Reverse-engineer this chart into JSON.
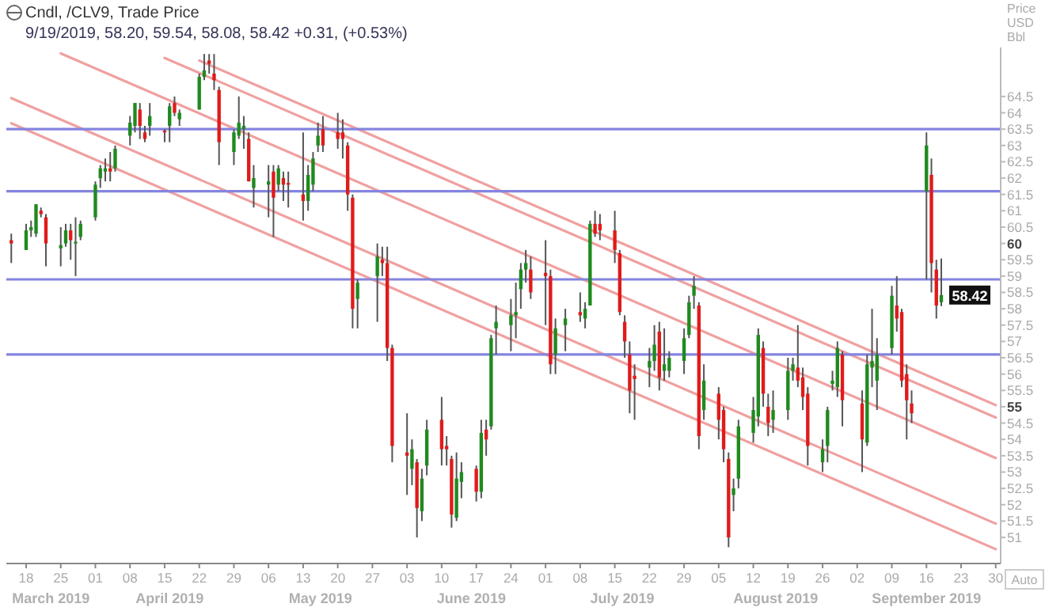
{
  "chart_data": {
    "type": "candlestick",
    "title": "Cndl, /CLV9, Trade Price",
    "subtitle": "9/19/2019, 58.20, 59.54, 58.08, 58.42 +0.31, (+0.53%)",
    "ylabel": "Price USD Bbl",
    "x": [
      "2019-03-15",
      "2019-03-18",
      "2019-03-19",
      "2019-03-20",
      "2019-03-21",
      "2019-03-22",
      "2019-03-25",
      "2019-03-26",
      "2019-03-27",
      "2019-03-28",
      "2019-03-29",
      "2019-04-01",
      "2019-04-02",
      "2019-04-03",
      "2019-04-04",
      "2019-04-05",
      "2019-04-08",
      "2019-04-09",
      "2019-04-10",
      "2019-04-11",
      "2019-04-12",
      "2019-04-15",
      "2019-04-16",
      "2019-04-17",
      "2019-04-18",
      "2019-04-22",
      "2019-04-23",
      "2019-04-24",
      "2019-04-25",
      "2019-04-26",
      "2019-04-29",
      "2019-04-30",
      "2019-05-01",
      "2019-05-02",
      "2019-05-03",
      "2019-05-06",
      "2019-05-07",
      "2019-05-08",
      "2019-05-09",
      "2019-05-10",
      "2019-05-13",
      "2019-05-14",
      "2019-05-15",
      "2019-05-16",
      "2019-05-17",
      "2019-05-20",
      "2019-05-21",
      "2019-05-22",
      "2019-05-23",
      "2019-05-24",
      "2019-05-28",
      "2019-05-29",
      "2019-05-30",
      "2019-05-31",
      "2019-06-03",
      "2019-06-04",
      "2019-06-05",
      "2019-06-06",
      "2019-06-07",
      "2019-06-10",
      "2019-06-11",
      "2019-06-12",
      "2019-06-13",
      "2019-06-14",
      "2019-06-17",
      "2019-06-18",
      "2019-06-19",
      "2019-06-20",
      "2019-06-21",
      "2019-06-24",
      "2019-06-25",
      "2019-06-26",
      "2019-06-27",
      "2019-06-28",
      "2019-07-01",
      "2019-07-02",
      "2019-07-03",
      "2019-07-05",
      "2019-07-08",
      "2019-07-09",
      "2019-07-10",
      "2019-07-11",
      "2019-07-12",
      "2019-07-15",
      "2019-07-16",
      "2019-07-17",
      "2019-07-18",
      "2019-07-19",
      "2019-07-22",
      "2019-07-23",
      "2019-07-24",
      "2019-07-25",
      "2019-07-26",
      "2019-07-29",
      "2019-07-30",
      "2019-07-31",
      "2019-08-01",
      "2019-08-02",
      "2019-08-05",
      "2019-08-06",
      "2019-08-07",
      "2019-08-08",
      "2019-08-09",
      "2019-08-12",
      "2019-08-13",
      "2019-08-14",
      "2019-08-15",
      "2019-08-16",
      "2019-08-19",
      "2019-08-20",
      "2019-08-21",
      "2019-08-22",
      "2019-08-23",
      "2019-08-26",
      "2019-08-27",
      "2019-08-28",
      "2019-08-29",
      "2019-08-30",
      "2019-09-03",
      "2019-09-04",
      "2019-09-05",
      "2019-09-06",
      "2019-09-09",
      "2019-09-10",
      "2019-09-11",
      "2019-09-12",
      "2019-09-13",
      "2019-09-16",
      "2019-09-17",
      "2019-09-18",
      "2019-09-19"
    ],
    "ohlc": [
      [
        60.1,
        60.3,
        59.4,
        60.0
      ],
      [
        59.8,
        60.6,
        59.8,
        60.4
      ],
      [
        60.4,
        60.7,
        60.2,
        60.5
      ],
      [
        60.3,
        61.2,
        60.2,
        61.2
      ],
      [
        61.0,
        61.1,
        60.8,
        60.9
      ],
      [
        60.8,
        60.9,
        59.3,
        60.0
      ],
      [
        59.85,
        60.5,
        59.3,
        59.95
      ],
      [
        60.0,
        60.6,
        59.9,
        60.4
      ],
      [
        60.4,
        60.6,
        59.5,
        60.1
      ],
      [
        60.0,
        60.8,
        59.0,
        60.05
      ],
      [
        60.2,
        60.7,
        60.1,
        60.6
      ],
      [
        60.8,
        61.9,
        60.7,
        61.8
      ],
      [
        62.0,
        62.4,
        61.7,
        62.3
      ],
      [
        62.2,
        62.6,
        61.9,
        62.3
      ],
      [
        62.3,
        62.8,
        61.9,
        62.2
      ],
      [
        62.3,
        63.0,
        62.2,
        62.9
      ],
      [
        63.3,
        63.9,
        63.0,
        63.7
      ],
      [
        63.6,
        64.3,
        63.4,
        64.3
      ],
      [
        64.1,
        64.3,
        63.2,
        63.6
      ],
      [
        63.4,
        63.6,
        63.1,
        63.2
      ],
      [
        63.6,
        64.3,
        63.3,
        63.9
      ],
      [
        63.45,
        63.5,
        63.1,
        63.4
      ],
      [
        63.6,
        64.3,
        63.1,
        64.2
      ],
      [
        64.3,
        64.5,
        63.9,
        64.0
      ],
      [
        63.8,
        64.1,
        63.6,
        64.0
      ],
      [
        64.1,
        65.2,
        64.1,
        65.1
      ],
      [
        65.1,
        65.8,
        65.0,
        65.3
      ],
      [
        65.6,
        65.8,
        65.2,
        65.5
      ],
      [
        65.2,
        65.8,
        64.7,
        65.0
      ],
      [
        64.7,
        64.8,
        62.4,
        63.1
      ],
      [
        62.8,
        63.5,
        62.4,
        63.4
      ],
      [
        63.3,
        64.5,
        63.2,
        63.7
      ],
      [
        63.5,
        63.9,
        62.9,
        63.6
      ],
      [
        63.2,
        63.4,
        61.9,
        61.9
      ],
      [
        61.7,
        62.4,
        61.1,
        62.0
      ],
      [
        61.8,
        62.4,
        60.8,
        61.9
      ],
      [
        62.2,
        62.4,
        60.2,
        61.4
      ],
      [
        61.8,
        62.4,
        61.6,
        62.3
      ],
      [
        62.0,
        62.2,
        61.3,
        61.8
      ],
      [
        61.85,
        62.2,
        61.1,
        61.8
      ],
      [
        61.5,
        63.4,
        60.7,
        61.3
      ],
      [
        61.3,
        62.4,
        61.0,
        62.1
      ],
      [
        61.8,
        62.8,
        61.6,
        62.6
      ],
      [
        63.0,
        63.7,
        62.8,
        63.3
      ],
      [
        63.5,
        63.9,
        62.8,
        63.0
      ],
      [
        63.4,
        64.0,
        62.9,
        63.2
      ],
      [
        63.4,
        63.8,
        62.6,
        63.2
      ],
      [
        63.0,
        63.1,
        61.0,
        61.5
      ],
      [
        61.4,
        61.5,
        57.4,
        58.0
      ],
      [
        58.3,
        58.9,
        57.4,
        58.8
      ],
      [
        59.0,
        60.0,
        57.6,
        59.6
      ],
      [
        59.5,
        59.9,
        59.0,
        59.4
      ],
      [
        59.4,
        59.9,
        56.4,
        56.8
      ],
      [
        56.8,
        56.9,
        53.3,
        53.8
      ],
      [
        53.6,
        54.8,
        52.3,
        53.5
      ],
      [
        53.1,
        54.0,
        52.6,
        53.7
      ],
      [
        53.3,
        53.4,
        51.0,
        51.9
      ],
      [
        51.8,
        53.1,
        51.5,
        52.8
      ],
      [
        53.2,
        54.6,
        52.9,
        54.3
      ],
      [
        54.6,
        55.3,
        53.2,
        53.7
      ],
      [
        53.8,
        54.1,
        53.2,
        53.7
      ],
      [
        53.4,
        53.5,
        51.3,
        51.7
      ],
      [
        51.6,
        53.6,
        51.5,
        52.8
      ],
      [
        52.7,
        53.3,
        52.2,
        53.0
      ],
      [
        53.1,
        53.2,
        52.1,
        52.4
      ],
      [
        52.4,
        54.6,
        52.2,
        54.2
      ],
      [
        54.3,
        54.6,
        53.5,
        54.0
      ],
      [
        54.4,
        57.2,
        54.3,
        57.1
      ],
      [
        57.4,
        58.1,
        56.6,
        57.6
      ],
      [
        57.5,
        58.3,
        56.7,
        57.8
      ],
      [
        57.8,
        58.8,
        57.1,
        57.9
      ],
      [
        58.6,
        59.4,
        58.0,
        59.2
      ],
      [
        59.2,
        59.8,
        58.8,
        59.4
      ],
      [
        59.2,
        59.6,
        58.3,
        58.5
      ],
      [
        59.1,
        60.1,
        57.5,
        59.0
      ],
      [
        59.0,
        59.2,
        56.0,
        56.3
      ],
      [
        56.6,
        57.7,
        56.0,
        57.4
      ],
      [
        57.5,
        58.0,
        56.7,
        57.7
      ],
      [
        57.9,
        58.5,
        57.6,
        57.8
      ],
      [
        57.7,
        58.2,
        57.4,
        58.0
      ],
      [
        58.1,
        60.7,
        58.1,
        60.6
      ],
      [
        60.6,
        61.0,
        60.2,
        60.3
      ],
      [
        60.6,
        60.9,
        60.1,
        60.4
      ],
      [
        60.4,
        61.0,
        59.4,
        59.8
      ],
      [
        59.7,
        59.8,
        57.8,
        57.9
      ],
      [
        57.6,
        57.8,
        56.5,
        57.0
      ],
      [
        56.6,
        57.0,
        54.8,
        55.5
      ],
      [
        55.95,
        56.3,
        54.6,
        55.85
      ],
      [
        56.2,
        56.8,
        55.6,
        56.4
      ],
      [
        56.4,
        57.5,
        56.1,
        56.9
      ],
      [
        57.3,
        57.6,
        55.5,
        55.9
      ],
      [
        56.1,
        57.4,
        55.8,
        56.3
      ],
      [
        56.1,
        56.7,
        55.9,
        56.5
      ],
      [
        56.4,
        57.4,
        56.0,
        57.1
      ],
      [
        57.2,
        58.4,
        57.1,
        58.2
      ],
      [
        58.4,
        59.0,
        58.0,
        58.7
      ],
      [
        58.1,
        58.2,
        53.7,
        54.1
      ],
      [
        54.9,
        56.3,
        54.6,
        55.8
      ],
      [
        55.4,
        55.6,
        54.0,
        54.6
      ],
      [
        54.9,
        55.0,
        53.3,
        53.7
      ],
      [
        53.4,
        53.6,
        50.7,
        51.0
      ],
      [
        52.3,
        52.8,
        51.8,
        52.5
      ],
      [
        52.8,
        54.6,
        52.5,
        54.4
      ],
      [
        54.2,
        55.3,
        53.9,
        54.9
      ],
      [
        54.7,
        57.4,
        54.4,
        57.2
      ],
      [
        56.8,
        57.0,
        55.0,
        55.4
      ],
      [
        55.0,
        55.4,
        54.1,
        54.5
      ],
      [
        54.6,
        55.5,
        54.2,
        54.9
      ],
      [
        54.9,
        56.5,
        54.6,
        56.1
      ],
      [
        56.1,
        56.5,
        55.8,
        56.3
      ],
      [
        56.2,
        57.5,
        55.6,
        55.8
      ],
      [
        55.9,
        56.2,
        54.9,
        55.3
      ],
      [
        55.4,
        55.6,
        53.2,
        53.8
      ],
      [
        53.3,
        54.0,
        53.0,
        53.7
      ],
      [
        53.8,
        55.0,
        53.3,
        54.9
      ],
      [
        55.7,
        56.1,
        55.5,
        55.8
      ],
      [
        55.6,
        57.0,
        55.3,
        56.8
      ],
      [
        56.6,
        56.7,
        54.4,
        55.2
      ],
      [
        55.1,
        55.5,
        53.0,
        54.0
      ],
      [
        53.9,
        56.6,
        53.8,
        56.3
      ],
      [
        56.2,
        58.0,
        55.6,
        56.4
      ],
      [
        55.8,
        57.1,
        54.9,
        56.6
      ],
      [
        56.8,
        58.7,
        56.6,
        58.4
      ],
      [
        58.1,
        59.0,
        57.3,
        57.7
      ],
      [
        57.9,
        58.0,
        55.6,
        55.8
      ],
      [
        56.0,
        56.3,
        54.0,
        55.2
      ],
      [
        55.1,
        55.5,
        54.5,
        54.8
      ],
      [
        61.6,
        63.4,
        58.9,
        63.0
      ],
      [
        62.1,
        62.6,
        58.5,
        59.4
      ],
      [
        59.2,
        59.5,
        57.7,
        58.1
      ],
      [
        58.2,
        59.54,
        58.08,
        58.42
      ]
    ],
    "series": [
      {
        "type": "line",
        "color": "#f0a0a0",
        "x": [
          "2019-03-15",
          "2019-09-30"
        ],
        "values": [
          63.68,
          50.64
        ]
      },
      {
        "type": "line",
        "color": "#f0a0a0",
        "x": [
          "2019-03-15",
          "2019-09-30"
        ],
        "values": [
          64.45,
          51.42
        ]
      },
      {
        "type": "line",
        "color": "#f0a0a0",
        "x": [
          "2019-03-25",
          "2019-09-30"
        ],
        "values": [
          65.82,
          53.43
        ]
      },
      {
        "type": "line",
        "color": "#f0a0a0",
        "x": [
          "2019-04-15",
          "2019-09-30"
        ],
        "values": [
          65.68,
          54.67
        ]
      },
      {
        "type": "line",
        "color": "#f0a0a0",
        "x": [
          "2019-04-22",
          "2019-09-30"
        ],
        "values": [
          65.6,
          55.05
        ]
      }
    ],
    "ref_lines": [
      {
        "axis": "y",
        "value": 63.5,
        "color": "#8484e0"
      },
      {
        "axis": "y",
        "value": 61.6,
        "color": "#8484e0"
      },
      {
        "axis": "y",
        "value": 58.9,
        "color": "#8484e0"
      },
      {
        "axis": "y",
        "value": 56.6,
        "color": "#8484e0"
      }
    ],
    "xlim": [
      "2019-03-14",
      "2019-10-01"
    ],
    "xticks": [
      {
        "value": "2019-03-18",
        "label": "18"
      },
      {
        "value": "2019-03-25",
        "label": "25"
      },
      {
        "value": "2019-04-01",
        "label": "01"
      },
      {
        "value": "2019-04-08",
        "label": "08"
      },
      {
        "value": "2019-04-15",
        "label": "15"
      },
      {
        "value": "2019-04-22",
        "label": "22"
      },
      {
        "value": "2019-04-29",
        "label": "29"
      },
      {
        "value": "2019-05-06",
        "label": "06"
      },
      {
        "value": "2019-05-13",
        "label": "13"
      },
      {
        "value": "2019-05-20",
        "label": "20"
      },
      {
        "value": "2019-05-27",
        "label": "27"
      },
      {
        "value": "2019-06-03",
        "label": "03"
      },
      {
        "value": "2019-06-10",
        "label": "10"
      },
      {
        "value": "2019-06-17",
        "label": "17"
      },
      {
        "value": "2019-06-24",
        "label": "24"
      },
      {
        "value": "2019-07-01",
        "label": "01"
      },
      {
        "value": "2019-07-08",
        "label": "08"
      },
      {
        "value": "2019-07-15",
        "label": "15"
      },
      {
        "value": "2019-07-22",
        "label": "22"
      },
      {
        "value": "2019-07-29",
        "label": "29"
      },
      {
        "value": "2019-08-05",
        "label": "05"
      },
      {
        "value": "2019-08-12",
        "label": "12"
      },
      {
        "value": "2019-08-19",
        "label": "19"
      },
      {
        "value": "2019-08-26",
        "label": "26"
      },
      {
        "value": "2019-09-02",
        "label": "02"
      },
      {
        "value": "2019-09-09",
        "label": "09"
      },
      {
        "value": "2019-09-16",
        "label": "16"
      },
      {
        "value": "2019-09-23",
        "label": "23"
      },
      {
        "value": "2019-09-30",
        "label": "30"
      }
    ],
    "ylim": [
      50.2,
      66
    ],
    "yticks": [
      51,
      51.5,
      52,
      52.5,
      53,
      53.5,
      54,
      54.5,
      55,
      55.5,
      56,
      56.5,
      57,
      57.5,
      58,
      58.5,
      59,
      59.5,
      60,
      60.5,
      61,
      61.5,
      62,
      62.5,
      63,
      63.5,
      64,
      64.5
    ],
    "grid": false,
    "annotations": [
      "March 2019",
      "April 2019",
      "May 2019",
      "June 2019",
      "July 2019",
      "August 2019",
      "September 2019",
      {
        "text": "58.42",
        "x": "2019-09-19",
        "y": 58.42
      },
      "Auto"
    ]
  }
}
